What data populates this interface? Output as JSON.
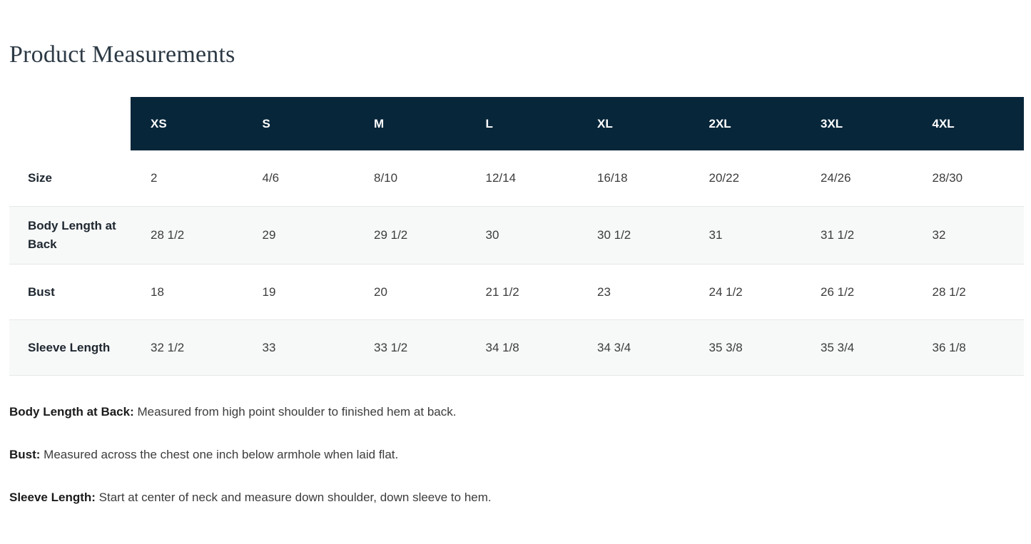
{
  "page": {
    "title": "Product Measurements"
  },
  "table": {
    "columns": [
      "XS",
      "S",
      "M",
      "L",
      "XL",
      "2XL",
      "3XL",
      "4XL"
    ],
    "rows": [
      {
        "label": "Size",
        "values": [
          "2",
          "4/6",
          "8/10",
          "12/14",
          "16/18",
          "20/22",
          "24/26",
          "28/30"
        ]
      },
      {
        "label": "Body Length at Back",
        "values": [
          "28 1/2",
          "29",
          "29 1/2",
          "30",
          "30 1/2",
          "31",
          "31 1/2",
          "32"
        ]
      },
      {
        "label": "Bust",
        "values": [
          "18",
          "19",
          "20",
          "21 1/2",
          "23",
          "24 1/2",
          "26 1/2",
          "28 1/2"
        ]
      },
      {
        "label": "Sleeve Length",
        "values": [
          "32 1/2",
          "33",
          "33 1/2",
          "34 1/8",
          "34 3/4",
          "35 3/8",
          "35 3/4",
          "36 1/8"
        ]
      }
    ]
  },
  "notes": [
    {
      "term": "Body Length at Back:",
      "definition": " Measured from high point shoulder to finished hem at back."
    },
    {
      "term": "Bust:",
      "definition": " Measured across the chest one inch below armhole when laid flat."
    },
    {
      "term": "Sleeve Length:",
      "definition": " Start at center of neck and measure down shoulder, down sleeve to hem."
    }
  ],
  "colors": {
    "header_bg": "#08263a",
    "header_text": "#ffffff",
    "stripe_bg": "#f7f8f8",
    "border": "#e7e7e7",
    "title": "#2d3a45",
    "text": "#3c3c3c"
  }
}
